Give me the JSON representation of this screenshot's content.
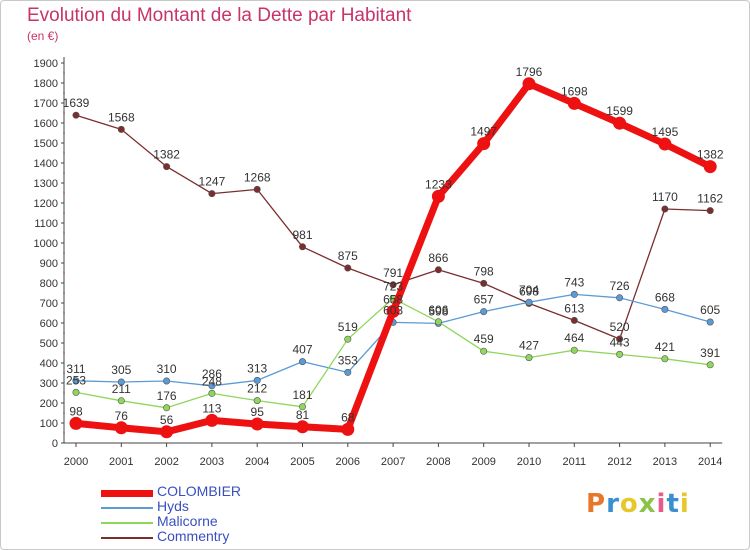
{
  "title": "Evolution du Montant de la Dette par Habitant",
  "subtitle": "(en €)",
  "logo_text": "Proxiti",
  "logo_colors": [
    "#e8762b",
    "#3a8fd1",
    "#e8c72b",
    "#8bc34a",
    "#e85a8c",
    "#3a8fd1",
    "#e8c72b"
  ],
  "chart_data": {
    "type": "line",
    "title": "Evolution du Montant de la Dette par Habitant",
    "subtitle": "(en €)",
    "x": [
      2000,
      2001,
      2002,
      2003,
      2004,
      2005,
      2006,
      2007,
      2008,
      2009,
      2010,
      2011,
      2012,
      2013,
      2014
    ],
    "ylim": [
      0,
      1900
    ],
    "yticks": [
      0,
      100,
      200,
      300,
      400,
      500,
      600,
      700,
      800,
      900,
      1000,
      1100,
      1200,
      1300,
      1400,
      1500,
      1600,
      1700,
      1800,
      1900
    ],
    "grid": false,
    "legend_position": "bottom-left",
    "series": [
      {
        "name": "COLOMBIER",
        "color": "#ee1111",
        "values": [
          98,
          76,
          56,
          113,
          95,
          81,
          68,
          658,
          1233,
          1497,
          1796,
          1698,
          1599,
          1495,
          1382
        ]
      },
      {
        "name": "Hyds",
        "color": "#5b9bd5",
        "values": [
          311,
          305,
          310,
          286,
          313,
          407,
          353,
          603,
          598,
          657,
          704,
          743,
          726,
          668,
          605
        ]
      },
      {
        "name": "Malicorne",
        "color": "#8fd65c",
        "values": [
          253,
          211,
          176,
          248,
          212,
          181,
          519,
          723,
          606,
          459,
          427,
          464,
          443,
          421,
          391
        ]
      },
      {
        "name": "Commentry",
        "color": "#7a2e2e",
        "values": [
          1639,
          1568,
          1382,
          1247,
          1268,
          981,
          875,
          791,
          866,
          798,
          698,
          613,
          520,
          1170,
          1162
        ]
      }
    ]
  }
}
